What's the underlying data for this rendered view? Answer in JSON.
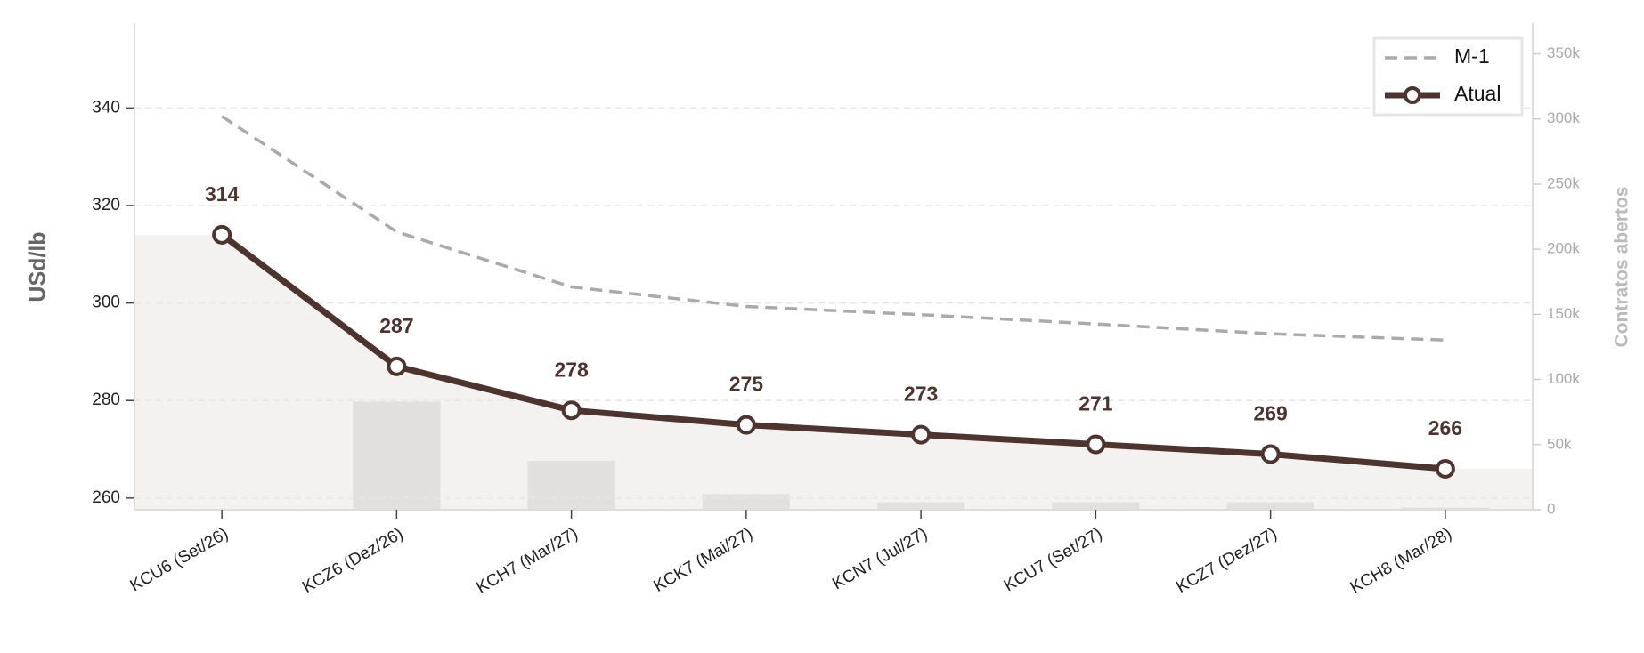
{
  "chart_data": {
    "type": "line",
    "categories": [
      "KCU6 (Set/26)",
      "KCZ6 (Dez/26)",
      "KCH7 (Mar/27)",
      "KCK7 (Mai/27)",
      "KCN7 (Jul/27)",
      "KCU7 (Set/27)",
      "KCZ7 (Dez/27)",
      "KCH8 (Mar/28)"
    ],
    "y_label": "USd/lb",
    "y2_label": "Contratos abertos",
    "ylim": [
      257.6,
      357.4
    ],
    "yticks": [
      260,
      280,
      300,
      320,
      340
    ],
    "y2lim": [
      0,
      373600
    ],
    "y2ticks": [
      0,
      {
        "value": 50000,
        "label": "50k"
      },
      {
        "value": 100000,
        "label": "100k"
      },
      {
        "value": 150000,
        "label": "150k"
      },
      {
        "value": 200000,
        "label": "200k"
      },
      {
        "value": 250000,
        "label": "250k"
      },
      {
        "value": 300000,
        "label": "300k"
      },
      {
        "value": 350000,
        "label": "350k"
      }
    ],
    "grid": true,
    "legend": "upper right",
    "area_color": "#f4f2f0",
    "open_interest": {
      "axis": "y2",
      "color": "#e1e0de",
      "values": [
        0,
        83000,
        37500,
        12000,
        5700,
        5700,
        5700,
        1600
      ]
    },
    "series": [
      {
        "name": "M-1",
        "color": "#aaaaaa",
        "dashed": true,
        "values": [
          338.3,
          314.6,
          303.3,
          299.3,
          297.6,
          295.7,
          293.7,
          292.4
        ]
      },
      {
        "name": "Atual",
        "color": "#4e342e",
        "markers": true,
        "value_labels_shown": true,
        "values": [
          314,
          287,
          278,
          275,
          273,
          271,
          269,
          266
        ]
      }
    ]
  }
}
